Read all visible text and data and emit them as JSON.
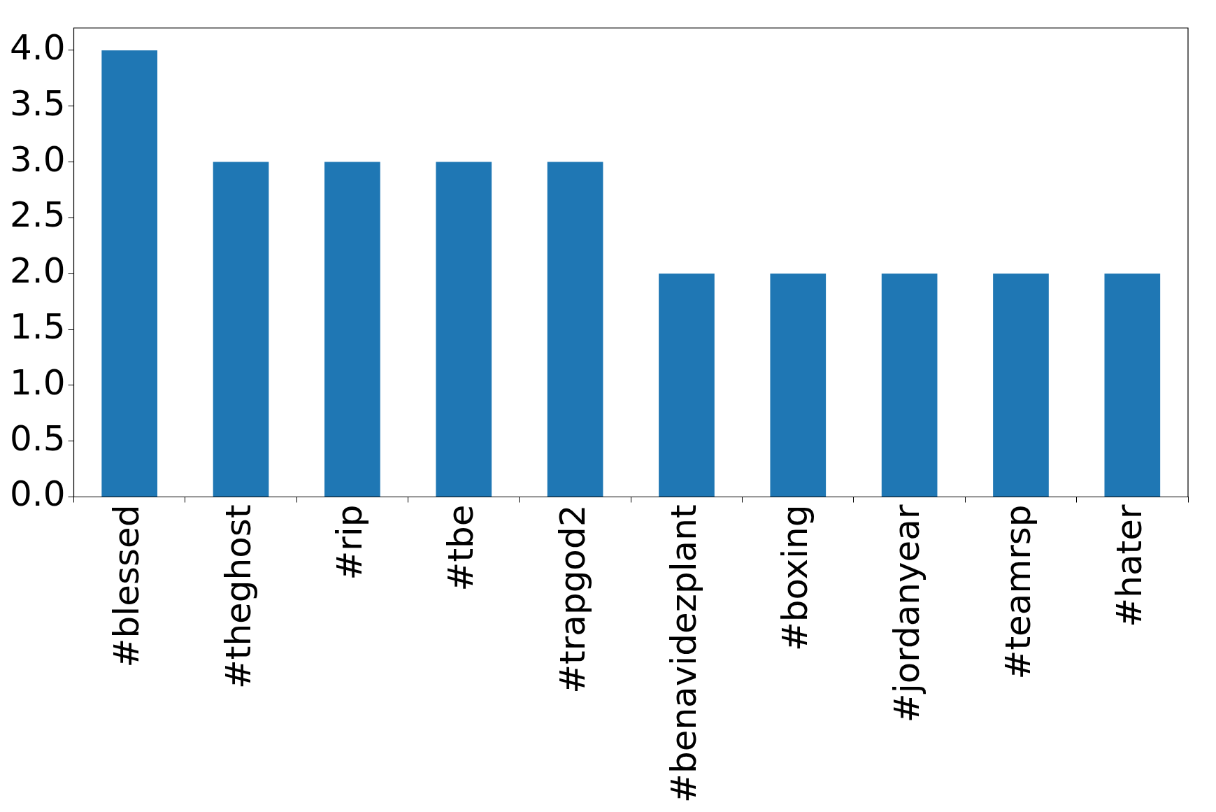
{
  "chart_data": {
    "type": "bar",
    "categories": [
      "#blessed",
      "#theghost",
      "#rip",
      "#tbe",
      "#trapgod2",
      "#benavidezplant",
      "#boxing",
      "#jordanyear",
      "#teamrsp",
      "#hater"
    ],
    "values": [
      4,
      3,
      3,
      3,
      3,
      2,
      2,
      2,
      2,
      2
    ],
    "color": "#1f77b4",
    "ylim": [
      0,
      4.2
    ],
    "yticks": [
      {
        "value": 0,
        "label": "0.0"
      },
      {
        "value": 0.5,
        "label": "0.5"
      },
      {
        "value": 1,
        "label": "1.0"
      },
      {
        "value": 1.5,
        "label": "1.5"
      },
      {
        "value": 2,
        "label": "2.0"
      },
      {
        "value": 2.5,
        "label": "2.5"
      },
      {
        "value": 3,
        "label": "3.0"
      },
      {
        "value": 3.5,
        "label": "3.5"
      },
      {
        "value": 4,
        "label": "4.0"
      }
    ],
    "grid": false,
    "legend": false
  }
}
